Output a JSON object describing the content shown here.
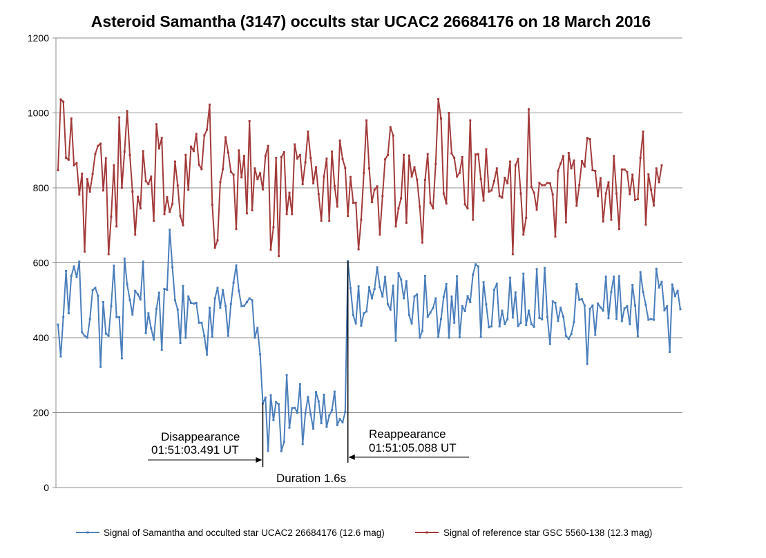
{
  "chart_data": {
    "type": "line",
    "title": "Asteroid Samantha (3147) occults star UCAC2 26684176 on 18 March 2016",
    "xlabel": "",
    "ylabel": "",
    "ylim": [
      0,
      1200
    ],
    "yticks": [
      "0",
      "200",
      "400",
      "600",
      "800",
      "1000",
      "1200"
    ],
    "grid": true,
    "legend_position": "bottom",
    "colors": {
      "target": "#4a7ebb",
      "reference": "#a33a3a",
      "gridline": "#8c8c8c",
      "axis": "#8c8c8c"
    },
    "series": [
      {
        "name": "Signal of Samantha and occulted star UCAC2 26684176 (12.6 mag)",
        "color": "#4a7ebb",
        "values": [
          435,
          350,
          455,
          578,
          465,
          565,
          590,
          562,
          603,
          415,
          405,
          400,
          450,
          527,
          533,
          512,
          322,
          495,
          411,
          405,
          485,
          592,
          455,
          455,
          345,
          611,
          542,
          501,
          462,
          525,
          516,
          502,
          603,
          412,
          465,
          425,
          395,
          477,
          520,
          368,
          530,
          528,
          688,
          588,
          500,
          475,
          386,
          538,
          400,
          510,
          493,
          491,
          493,
          440,
          440,
          405,
          355,
          480,
          403,
          505,
          533,
          480,
          527,
          484,
          405,
          490,
          547,
          593,
          525,
          484,
          485,
          495,
          505,
          500,
          400,
          426,
          356,
          225,
          240,
          98,
          246,
          180,
          228,
          222,
          97,
          122,
          300,
          160,
          212,
          213,
          200,
          276,
          116,
          198,
          242,
          195,
          157,
          255,
          230,
          172,
          248,
          162,
          192,
          207,
          256,
          167,
          183,
          174,
          202,
          604,
          532,
          460,
          438,
          537,
          432,
          465,
          470,
          535,
          505,
          530,
          588,
          535,
          510,
          562,
          489,
          475,
          539,
          392,
          572,
          555,
          505,
          551,
          460,
          438,
          510,
          516,
          400,
          418,
          565,
          456,
          467,
          479,
          505,
          402,
          450,
          508,
          543,
          400,
          510,
          440,
          564,
          401,
          484,
          471,
          511,
          495,
          568,
          596,
          590,
          402,
          548,
          489,
          428,
          430,
          528,
          544,
          430,
          472,
          436,
          450,
          560,
          454,
          521,
          431,
          440,
          571,
          434,
          472,
          436,
          429,
          583,
          453,
          449,
          586,
          455,
          383,
          497,
          493,
          445,
          480,
          456,
          405,
          397,
          410,
          442,
          543,
          501,
          503,
          486,
          330,
          477,
          486,
          408,
          491,
          481,
          472,
          563,
          452,
          522,
          563,
          450,
          564,
          444,
          478,
          484,
          436,
          541,
          486,
          404,
          575,
          522,
          488,
          448,
          450,
          448,
          584,
          534,
          549,
          473,
          484,
          362,
          542,
          511,
          525,
          476
        ]
      },
      {
        "name": "Signal of reference star GSC 5560-138 (12.3 mag)",
        "color": "#a33a3a",
        "values": [
          847,
          1036,
          1030,
          880,
          875,
          985,
          860,
          866,
          782,
          838,
          630,
          823,
          790,
          837,
          890,
          912,
          918,
          793,
          879,
          623,
          723,
          860,
          697,
          988,
          800,
          897,
          1005,
          888,
          790,
          675,
          776,
          745,
          898,
          818,
          810,
          830,
          712,
          970,
          905,
          933,
          730,
          775,
          736,
          757,
          870,
          806,
          725,
          700,
          888,
          795,
          910,
          898,
          944,
          862,
          850,
          940,
          955,
          1022,
          755,
          640,
          660,
          815,
          850,
          935,
          894,
          843,
          835,
          690,
          900,
          828,
          885,
          732,
          978,
          740,
          852,
          823,
          839,
          796,
          885,
          912,
          635,
          695,
          880,
          618,
          882,
          895,
          730,
          787,
          730,
          916,
          878,
          888,
          810,
          868,
          950,
          880,
          812,
          855,
          783,
          712,
          830,
          878,
          712,
          897,
          805,
          750,
          926,
          877,
          853,
          725,
          829,
          760,
          760,
          636,
          715,
          840,
          980,
          852,
          762,
          795,
          804,
          675,
          778,
          876,
          888,
          962,
          940,
          697,
          745,
          772,
          888,
          707,
          886,
          830,
          855,
          822,
          750,
          654,
          821,
          890,
          760,
          745,
          864,
          1037,
          985,
          785,
          758,
          1000,
          892,
          880,
          830,
          840,
          882,
          756,
          745,
          980,
          715,
          889,
          890,
          823,
          766,
          903,
          790,
          793,
          818,
          852,
          778,
          774,
          827,
          812,
          870,
          623,
          860,
          877,
          785,
          675,
          720,
          1010,
          802,
          787,
          742,
          813,
          807,
          807,
          813,
          812,
          782,
          670,
          845,
          865,
          885,
          708,
          893,
          852,
          873,
          752,
          808,
          871,
          857,
          933,
          930,
          847,
          845,
          778,
          826,
          710,
          785,
          815,
          715,
          885,
          785,
          690,
          849,
          849,
          842,
          783,
          835,
          768,
          770,
          880,
          950,
          702,
          836,
          795,
          753,
          852,
          815,
          860
        ]
      }
    ],
    "annotations": [
      {
        "id": "disappearance",
        "line1": "Disappearance",
        "line2": "01:51:03.491 UT",
        "index": 77
      },
      {
        "id": "reappearance",
        "line1": "Reappearance",
        "line2": "01:51:05.088 UT",
        "index": 109
      },
      {
        "id": "duration",
        "text": "Duration 1.6s"
      }
    ]
  }
}
